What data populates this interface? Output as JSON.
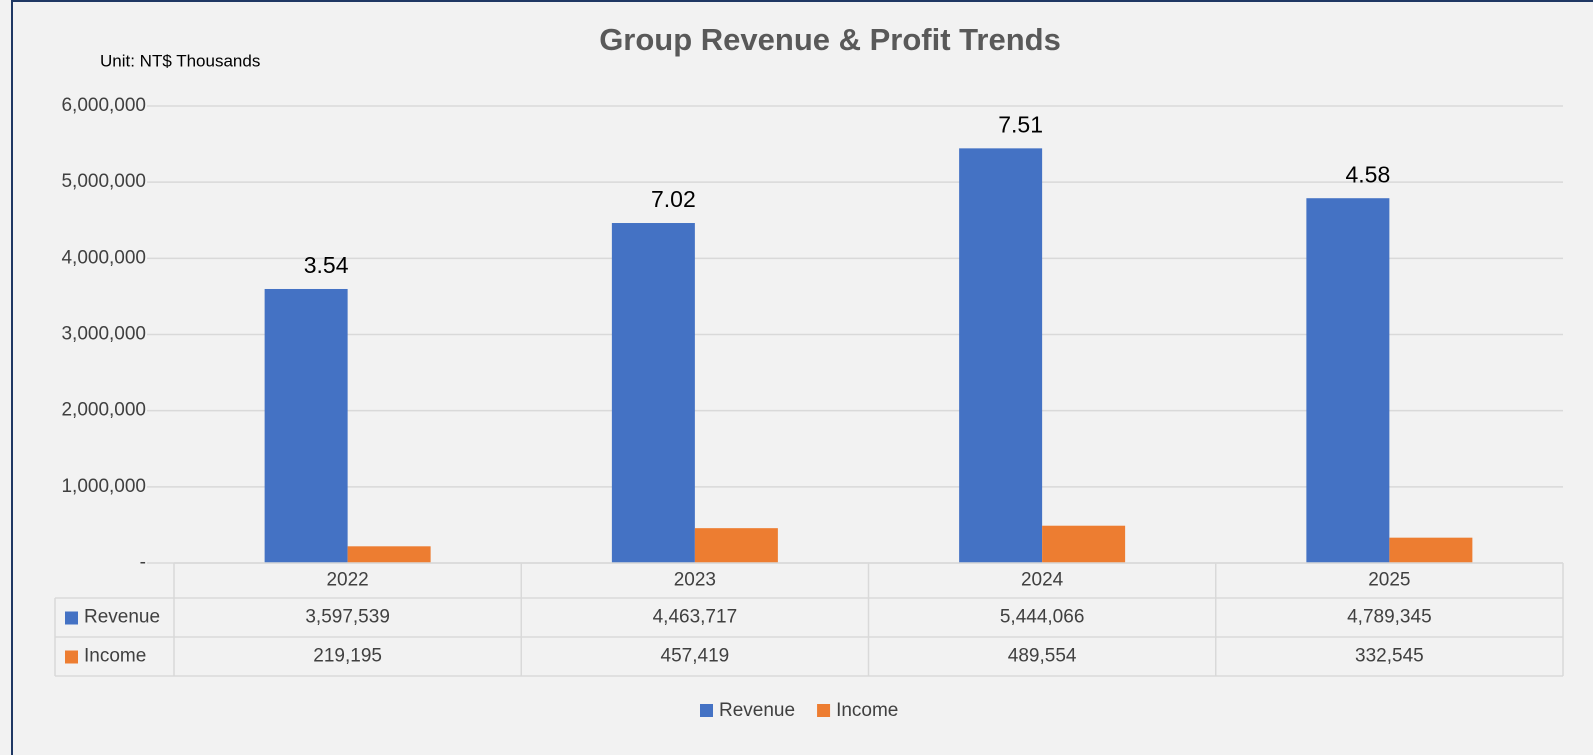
{
  "chart_data": {
    "type": "bar",
    "title": "Group Revenue & Profit Trends",
    "unit_label": "Unit: NT$ Thousands",
    "categories": [
      "2022",
      "2023",
      "2024",
      "2025"
    ],
    "series": [
      {
        "name": "Revenue",
        "color": "#4472c4",
        "values": [
          3597539,
          4463717,
          5444066,
          4789345
        ],
        "value_labels": [
          "3,597,539",
          "4,463,717",
          "5,444,066",
          "4,789,345"
        ]
      },
      {
        "name": "Income",
        "color": "#ed7d31",
        "values": [
          219195,
          457419,
          489554,
          332545
        ],
        "value_labels": [
          "219,195",
          "457,419",
          "489,554",
          "332,545"
        ]
      }
    ],
    "annotations": [
      3.54,
      7.02,
      7.51,
      4.58
    ],
    "ylim": [
      0,
      6000000
    ],
    "yticks": [
      {
        "value": 0,
        "label": "-"
      },
      {
        "value": 1000000,
        "label": "1,000,000"
      },
      {
        "value": 2000000,
        "label": "2,000,000"
      },
      {
        "value": 3000000,
        "label": "3,000,000"
      },
      {
        "value": 4000000,
        "label": "4,000,000"
      },
      {
        "value": 5000000,
        "label": "5,000,000"
      },
      {
        "value": 6000000,
        "label": "6,000,000"
      }
    ],
    "grid": true,
    "legend": "bottom"
  }
}
